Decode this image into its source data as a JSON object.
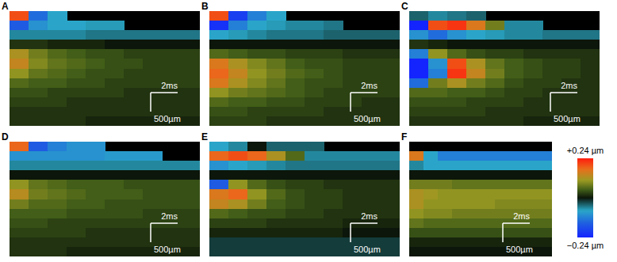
{
  "chart_data": [
    {
      "type": "heatmap",
      "title": "A",
      "tick_labels": false,
      "annotations": [
        "2ms",
        "500µm"
      ],
      "cells": [
        [
          0.2,
          -0.14,
          -0.08,
          null,
          null,
          null,
          null,
          null,
          null,
          null
        ],
        [
          -0.16,
          -0.1,
          -0.08,
          -0.08,
          -0.07,
          -0.07,
          null,
          null,
          null,
          null
        ],
        [
          -0.06,
          -0.06,
          -0.06,
          -0.06,
          -0.05,
          -0.05,
          -0.05,
          -0.05,
          -0.05,
          -0.05
        ],
        [
          0.02,
          0.02,
          0.01,
          0.01,
          0.01,
          0.0,
          0.0,
          0.0,
          0.0,
          0.0
        ],
        [
          0.12,
          0.08,
          0.06,
          0.05,
          0.04,
          0.04,
          0.03,
          0.03,
          0.03,
          0.03
        ],
        [
          0.14,
          0.09,
          0.07,
          0.06,
          0.05,
          0.04,
          0.04,
          0.03,
          0.03,
          0.03
        ],
        [
          0.1,
          0.07,
          0.06,
          0.05,
          0.04,
          0.04,
          0.03,
          0.03,
          0.03,
          0.03
        ],
        [
          0.06,
          0.05,
          0.05,
          0.04,
          0.04,
          0.03,
          0.03,
          0.03,
          0.03,
          0.03
        ],
        [
          0.04,
          0.04,
          0.03,
          0.03,
          0.03,
          0.03,
          0.02,
          0.02,
          0.02,
          0.02
        ],
        [
          0.03,
          0.03,
          0.03,
          0.02,
          0.02,
          0.02,
          0.02,
          0.02,
          0.02,
          0.02
        ],
        [
          0.02,
          0.02,
          0.02,
          0.02,
          0.02,
          0.02,
          0.02,
          0.02,
          0.02,
          0.02
        ],
        [
          0.02,
          0.02,
          0.02,
          0.02,
          0.01,
          0.01,
          0.01,
          0.01,
          0.01,
          0.01
        ]
      ]
    },
    {
      "type": "heatmap",
      "title": "B",
      "tick_labels": false,
      "annotations": [
        "2ms",
        "500µm"
      ],
      "cells": [
        [
          0.2,
          -0.2,
          -0.12,
          -0.08,
          null,
          null,
          null,
          null,
          null,
          null
        ],
        [
          -0.22,
          -0.12,
          -0.08,
          -0.07,
          -0.06,
          -0.06,
          -0.05,
          null,
          null,
          null
        ],
        [
          -0.08,
          -0.07,
          -0.06,
          -0.05,
          -0.05,
          -0.05,
          -0.04,
          -0.04,
          -0.04,
          -0.04
        ],
        [
          0.0,
          0.0,
          0.0,
          0.0,
          0.0,
          0.0,
          0.0,
          0.0,
          0.0,
          0.0
        ],
        [
          0.06,
          0.05,
          0.04,
          0.04,
          0.03,
          0.03,
          0.03,
          0.02,
          0.02,
          0.02
        ],
        [
          0.16,
          0.12,
          0.09,
          0.07,
          0.05,
          0.04,
          0.04,
          0.03,
          0.03,
          0.03
        ],
        [
          0.18,
          0.14,
          0.1,
          0.08,
          0.06,
          0.05,
          0.04,
          0.03,
          0.03,
          0.03
        ],
        [
          0.16,
          0.12,
          0.09,
          0.07,
          0.05,
          0.04,
          0.04,
          0.03,
          0.03,
          0.03
        ],
        [
          0.1,
          0.08,
          0.07,
          0.06,
          0.05,
          0.04,
          0.03,
          0.03,
          0.03,
          0.03
        ],
        [
          0.06,
          0.05,
          0.05,
          0.04,
          0.04,
          0.03,
          0.03,
          0.03,
          0.02,
          0.02
        ],
        [
          0.04,
          0.04,
          0.03,
          0.03,
          0.03,
          0.03,
          0.02,
          0.02,
          0.02,
          0.02
        ],
        [
          0.03,
          0.03,
          0.03,
          0.02,
          0.02,
          0.02,
          0.02,
          0.02,
          0.02,
          0.02
        ]
      ]
    },
    {
      "type": "heatmap",
      "title": "C",
      "tick_labels": false,
      "annotations": [
        "2ms",
        "500µm"
      ],
      "cells": [
        [
          -0.04,
          -0.06,
          -0.05,
          -0.04,
          null,
          null,
          null,
          null,
          null,
          null
        ],
        [
          -0.24,
          0.2,
          0.22,
          0.16,
          0.08,
          -0.06,
          -0.06,
          null,
          null,
          null
        ],
        [
          -0.1,
          -0.14,
          -0.1,
          -0.08,
          -0.07,
          -0.06,
          -0.06,
          -0.05,
          -0.05,
          -0.05
        ],
        [
          0.02,
          0.01,
          0.0,
          0.0,
          0.0,
          0.0,
          0.0,
          0.0,
          0.0,
          0.0
        ],
        [
          -0.12,
          0.1,
          0.06,
          0.04,
          0.03,
          0.03,
          0.02,
          0.02,
          0.02,
          0.02
        ],
        [
          -0.24,
          -0.1,
          0.2,
          0.12,
          0.07,
          0.05,
          0.04,
          0.03,
          0.03,
          0.02
        ],
        [
          -0.24,
          -0.12,
          0.22,
          0.14,
          0.08,
          0.05,
          0.04,
          0.03,
          0.03,
          0.02
        ],
        [
          -0.14,
          0.08,
          0.12,
          0.08,
          0.06,
          0.04,
          0.03,
          0.03,
          0.02,
          0.02
        ],
        [
          0.06,
          0.06,
          0.05,
          0.05,
          0.04,
          0.03,
          0.03,
          0.02,
          0.02,
          0.02
        ],
        [
          0.04,
          0.04,
          0.04,
          0.03,
          0.03,
          0.03,
          0.02,
          0.02,
          0.02,
          0.02
        ],
        [
          0.03,
          0.03,
          0.03,
          0.03,
          0.02,
          0.02,
          0.02,
          0.02,
          0.02,
          0.02
        ],
        [
          0.02,
          0.02,
          0.02,
          0.02,
          0.02,
          0.02,
          0.01,
          0.01,
          0.01,
          0.01
        ]
      ]
    },
    {
      "type": "heatmap",
      "title": "D",
      "tick_labels": false,
      "annotations": [
        "2ms",
        "500µm"
      ],
      "cells": [
        [
          0.18,
          -0.16,
          -0.12,
          -0.1,
          -0.1,
          null,
          null,
          null,
          null,
          null
        ],
        [
          -0.1,
          -0.1,
          -0.1,
          -0.1,
          -0.1,
          -0.09,
          -0.09,
          -0.09,
          null,
          null
        ],
        [
          -0.06,
          -0.06,
          -0.06,
          -0.06,
          -0.06,
          -0.06,
          -0.06,
          -0.06,
          -0.06,
          -0.06
        ],
        [
          0.0,
          0.0,
          0.0,
          0.0,
          0.0,
          0.0,
          0.0,
          0.0,
          0.0,
          0.0
        ],
        [
          0.1,
          0.07,
          0.06,
          0.05,
          0.05,
          0.05,
          0.04,
          0.04,
          0.04,
          0.04
        ],
        [
          0.13,
          0.08,
          0.07,
          0.06,
          0.05,
          0.05,
          0.05,
          0.04,
          0.04,
          0.04
        ],
        [
          0.08,
          0.06,
          0.06,
          0.05,
          0.05,
          0.04,
          0.04,
          0.04,
          0.04,
          0.04
        ],
        [
          0.05,
          0.05,
          0.05,
          0.04,
          0.04,
          0.04,
          0.04,
          0.03,
          0.03,
          0.03
        ],
        [
          0.04,
          0.04,
          0.03,
          0.03,
          0.03,
          0.03,
          0.03,
          0.03,
          0.03,
          0.03
        ],
        [
          0.03,
          0.03,
          0.03,
          0.03,
          0.02,
          0.02,
          0.02,
          0.02,
          0.02,
          0.02
        ],
        [
          0.02,
          0.02,
          0.02,
          0.02,
          0.02,
          0.02,
          0.02,
          0.02,
          0.02,
          0.02
        ],
        [
          0.02,
          0.02,
          0.02,
          0.01,
          0.01,
          0.01,
          0.01,
          0.01,
          0.01,
          0.01
        ]
      ]
    },
    {
      "type": "heatmap",
      "title": "E",
      "tick_labels": false,
      "annotations": [
        "2ms",
        "500µm"
      ],
      "cells": [
        [
          -0.08,
          -0.06,
          0.0,
          -0.04,
          -0.04,
          -0.04,
          null,
          null,
          null,
          null
        ],
        [
          0.18,
          0.2,
          0.18,
          0.12,
          0.06,
          -0.06,
          -0.06,
          -0.06,
          -0.06,
          -0.06
        ],
        [
          -0.1,
          -0.08,
          -0.07,
          -0.06,
          -0.05,
          -0.05,
          -0.05,
          -0.05,
          -0.05,
          -0.05
        ],
        [
          0.0,
          0.0,
          0.0,
          0.0,
          0.0,
          0.0,
          0.0,
          0.0,
          0.0,
          0.0
        ],
        [
          -0.16,
          0.1,
          0.06,
          0.04,
          0.03,
          0.03,
          0.02,
          0.02,
          0.02,
          0.02
        ],
        [
          0.16,
          0.18,
          0.1,
          0.06,
          0.04,
          0.03,
          0.03,
          0.02,
          0.02,
          0.02
        ],
        [
          0.14,
          0.12,
          0.08,
          0.05,
          0.04,
          0.03,
          0.03,
          0.02,
          0.02,
          0.02
        ],
        [
          0.06,
          0.05,
          0.04,
          0.04,
          0.03,
          0.03,
          0.02,
          0.02,
          0.02,
          0.02
        ],
        [
          0.03,
          0.03,
          0.03,
          0.02,
          0.02,
          0.02,
          0.02,
          0.01,
          0.01,
          0.01
        ],
        [
          0.01,
          0.01,
          0.01,
          0.01,
          0.01,
          0.01,
          0.01,
          0.0,
          0.0,
          0.0
        ],
        [
          -0.02,
          -0.02,
          -0.02,
          -0.02,
          -0.02,
          -0.02,
          -0.02,
          -0.02,
          -0.02,
          -0.02
        ],
        [
          -0.02,
          -0.02,
          -0.02,
          -0.02,
          -0.02,
          -0.02,
          -0.02,
          -0.02,
          -0.02,
          -0.02
        ]
      ]
    },
    {
      "type": "heatmap",
      "title": "F",
      "tick_labels": false,
      "annotations": [
        "2ms",
        "500µm"
      ],
      "cells": [
        [
          null,
          null,
          null,
          null,
          null,
          null,
          null,
          null,
          null,
          null
        ],
        [
          0.16,
          -0.08,
          -0.12,
          -0.12,
          -0.12,
          -0.12,
          -0.12,
          -0.12,
          -0.12,
          -0.12
        ],
        [
          -0.06,
          -0.08,
          -0.08,
          -0.08,
          -0.08,
          -0.08,
          -0.08,
          -0.08,
          -0.08,
          -0.08
        ],
        [
          0.0,
          0.0,
          0.0,
          0.0,
          0.0,
          0.0,
          0.0,
          0.0,
          0.0,
          0.0
        ],
        [
          0.08,
          0.08,
          0.08,
          0.07,
          0.07,
          0.07,
          0.07,
          0.07,
          0.07,
          0.07
        ],
        [
          0.12,
          0.11,
          0.1,
          0.1,
          0.1,
          0.1,
          0.1,
          0.1,
          0.1,
          0.1
        ],
        [
          0.12,
          0.1,
          0.1,
          0.1,
          0.1,
          0.1,
          0.09,
          0.09,
          0.09,
          0.09
        ],
        [
          0.1,
          0.09,
          0.09,
          0.08,
          0.08,
          0.08,
          0.08,
          0.08,
          0.08,
          0.08
        ],
        [
          0.07,
          0.06,
          0.06,
          0.06,
          0.06,
          0.06,
          0.06,
          0.06,
          0.06,
          0.06
        ],
        [
          0.04,
          0.04,
          0.04,
          0.04,
          0.04,
          0.04,
          0.04,
          0.04,
          0.04,
          0.04
        ],
        [
          0.01,
          0.01,
          0.01,
          0.01,
          0.01,
          0.01,
          0.01,
          0.01,
          0.01,
          0.01
        ],
        [
          0.0,
          0.0,
          0.0,
          0.0,
          0.0,
          0.0,
          0.0,
          0.0,
          0.0,
          0.0
        ]
      ]
    }
  ],
  "colorbar": {
    "range": [
      -0.24,
      0.24
    ],
    "ticks": [
      {
        "value": 0.24,
        "label": "+0.24 µm"
      },
      {
        "value": -0.24,
        "label": "−0.24 µm"
      }
    ]
  }
}
